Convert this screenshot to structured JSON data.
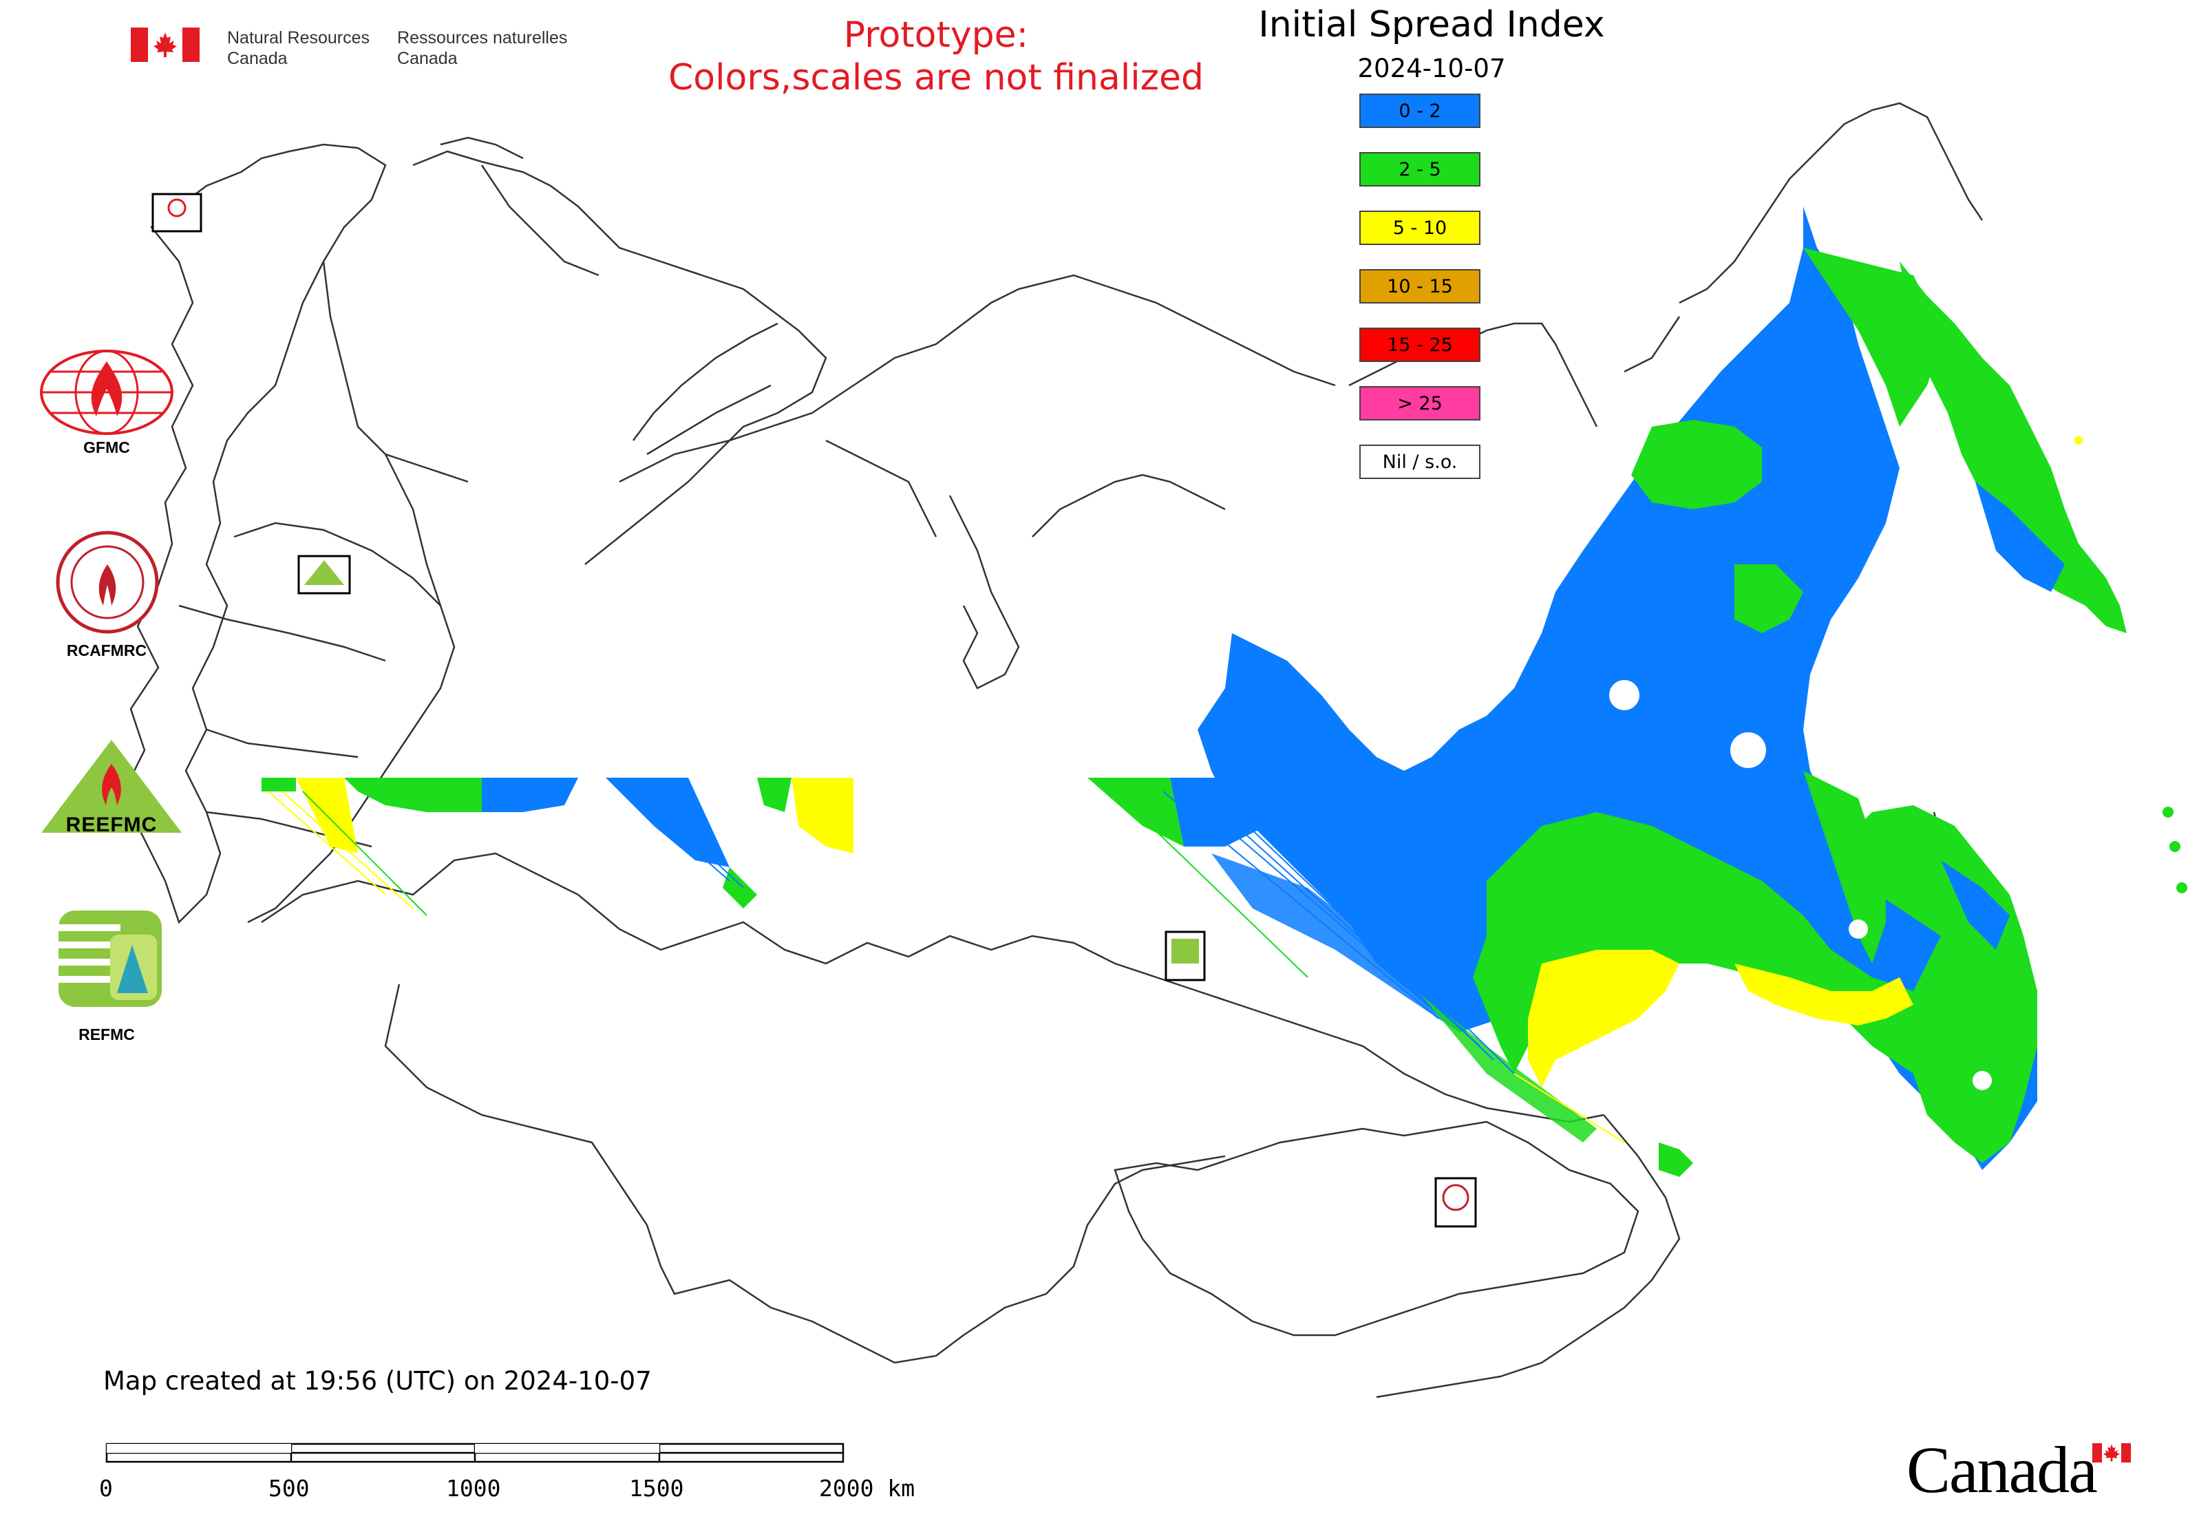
{
  "header": {
    "gov_en_line1": "Natural Resources",
    "gov_en_line2": "Canada",
    "gov_fr_line1": "Ressources naturelles",
    "gov_fr_line2": "Canada",
    "prototype_line1": "Prototype:",
    "prototype_line2": "Colors,scales are not finalized"
  },
  "map": {
    "title": "Initial Spread Index",
    "date": "2024-10-07",
    "legend": [
      {
        "label": "0 - 2",
        "color": "#0a7cff"
      },
      {
        "label": "2 - 5",
        "color": "#1cdc1c"
      },
      {
        "label": "5 - 10",
        "color": "#ffff00"
      },
      {
        "label": "10 - 15",
        "color": "#e0a000"
      },
      {
        "label": "15 - 25",
        "color": "#ff0000"
      },
      {
        "label": "> 25",
        "color": "#ff3ca0"
      },
      {
        "label": "Nil / s.o.",
        "color": "#ffffff"
      }
    ]
  },
  "partners": [
    {
      "name": "GFMC",
      "icon": "gfmc-logo"
    },
    {
      "name": "RCAFMRC",
      "icon": "rcafmrc-logo"
    },
    {
      "name": "REEFMC",
      "icon": "reefmc-logo"
    },
    {
      "name": "REFMC",
      "icon": "refmc-logo"
    }
  ],
  "footer": {
    "created": "Map created at 19:56 (UTC) on 2024-10-07",
    "scale_labels": [
      "0",
      "500",
      "1000",
      "1500",
      "2000 km"
    ],
    "wordmark": "Canada"
  }
}
